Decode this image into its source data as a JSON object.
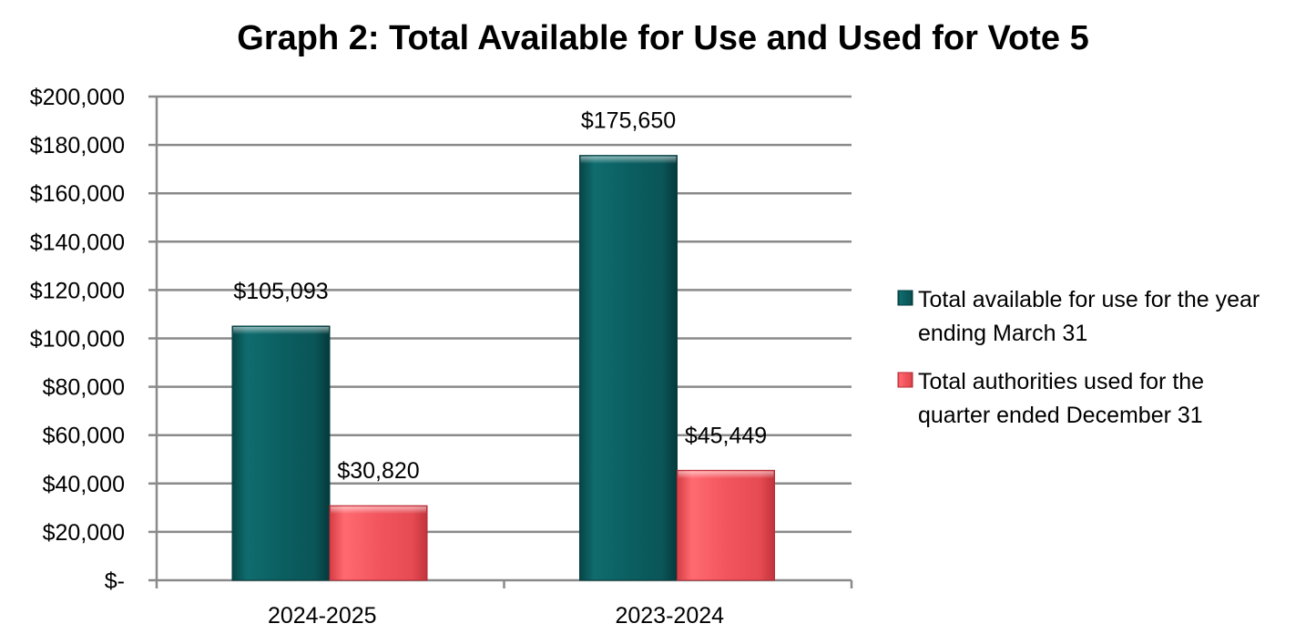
{
  "chart_data": {
    "type": "bar",
    "title": "Graph 2: Total Available for Use and Used for Vote 5",
    "xlabel": "",
    "ylabel": "",
    "categories": [
      "2024-2025",
      "2023-2024"
    ],
    "series": [
      {
        "name": "Total available for use for the year ending March 31",
        "legend_lines": [
          "Total available for use for the year",
          "ending March 31"
        ],
        "values": [
          105093,
          175650
        ],
        "value_labels": [
          "$105,093",
          "$175,650"
        ],
        "color": "#0b5e60"
      },
      {
        "name": "Total authorities used for the quarter ended December 31",
        "legend_lines": [
          "Total authorities used for the",
          "quarter ended December 31"
        ],
        "values": [
          30820,
          45449
        ],
        "value_labels": [
          "$30,820",
          "$45,449"
        ],
        "color": "#f0535b"
      }
    ],
    "ylim": [
      0,
      200000
    ],
    "yticks": [
      0,
      20000,
      40000,
      60000,
      80000,
      100000,
      120000,
      140000,
      160000,
      180000,
      200000
    ],
    "ytick_labels": [
      "$-",
      "$20,000",
      "$40,000",
      "$60,000",
      "$80,000",
      "$100,000",
      "$120,000",
      "$140,000",
      "$160,000",
      "$180,000",
      "$200,000"
    ],
    "grid": true,
    "legend_position": "right"
  }
}
